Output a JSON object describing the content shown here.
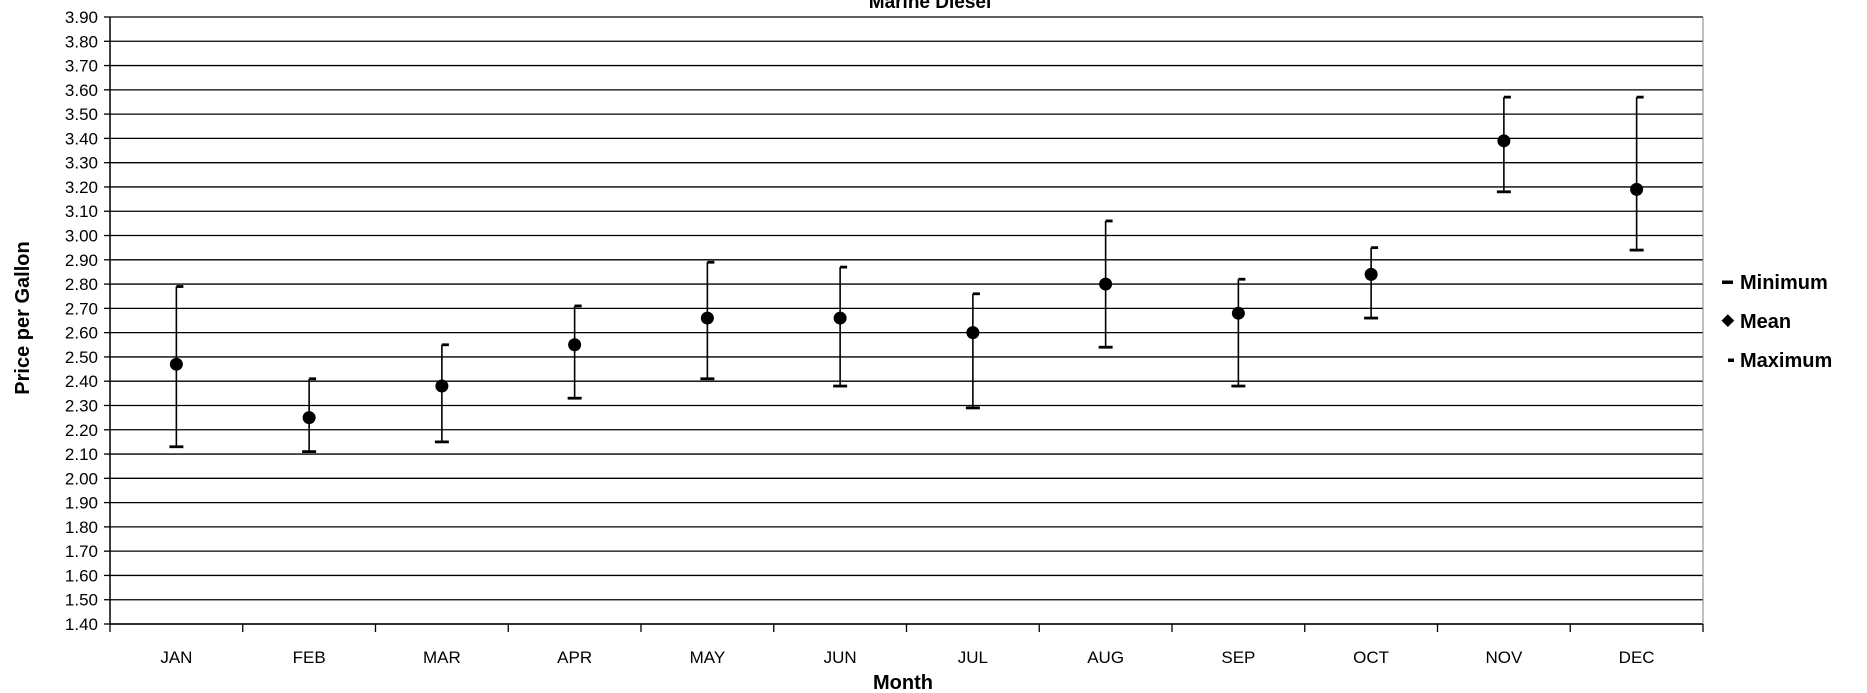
{
  "chart_data": {
    "type": "scatter",
    "title": "Marine Diesel",
    "xlabel": "Month",
    "ylabel": "Price per Gallon",
    "categories": [
      "JAN",
      "FEB",
      "MAR",
      "APR",
      "MAY",
      "JUN",
      "JUL",
      "AUG",
      "SEP",
      "OCT",
      "NOV",
      "DEC"
    ],
    "ylim": [
      1.4,
      3.9
    ],
    "ytick_step": 0.1,
    "grid": true,
    "legend_position": "right",
    "series": [
      {
        "name": "Minimum",
        "values": [
          2.13,
          2.11,
          2.15,
          2.33,
          2.41,
          2.38,
          2.29,
          2.54,
          2.38,
          2.66,
          3.18,
          2.94
        ]
      },
      {
        "name": "Mean",
        "values": [
          2.47,
          2.25,
          2.38,
          2.55,
          2.66,
          2.66,
          2.6,
          2.8,
          2.68,
          2.84,
          3.39,
          3.19
        ]
      },
      {
        "name": "Maximum",
        "values": [
          2.79,
          2.41,
          2.55,
          2.71,
          2.89,
          2.87,
          2.76,
          3.06,
          2.82,
          2.95,
          3.57,
          3.57
        ]
      }
    ],
    "colors": {
      "marks": "#000000",
      "grid": "#000000",
      "background": "#ffffff"
    }
  }
}
